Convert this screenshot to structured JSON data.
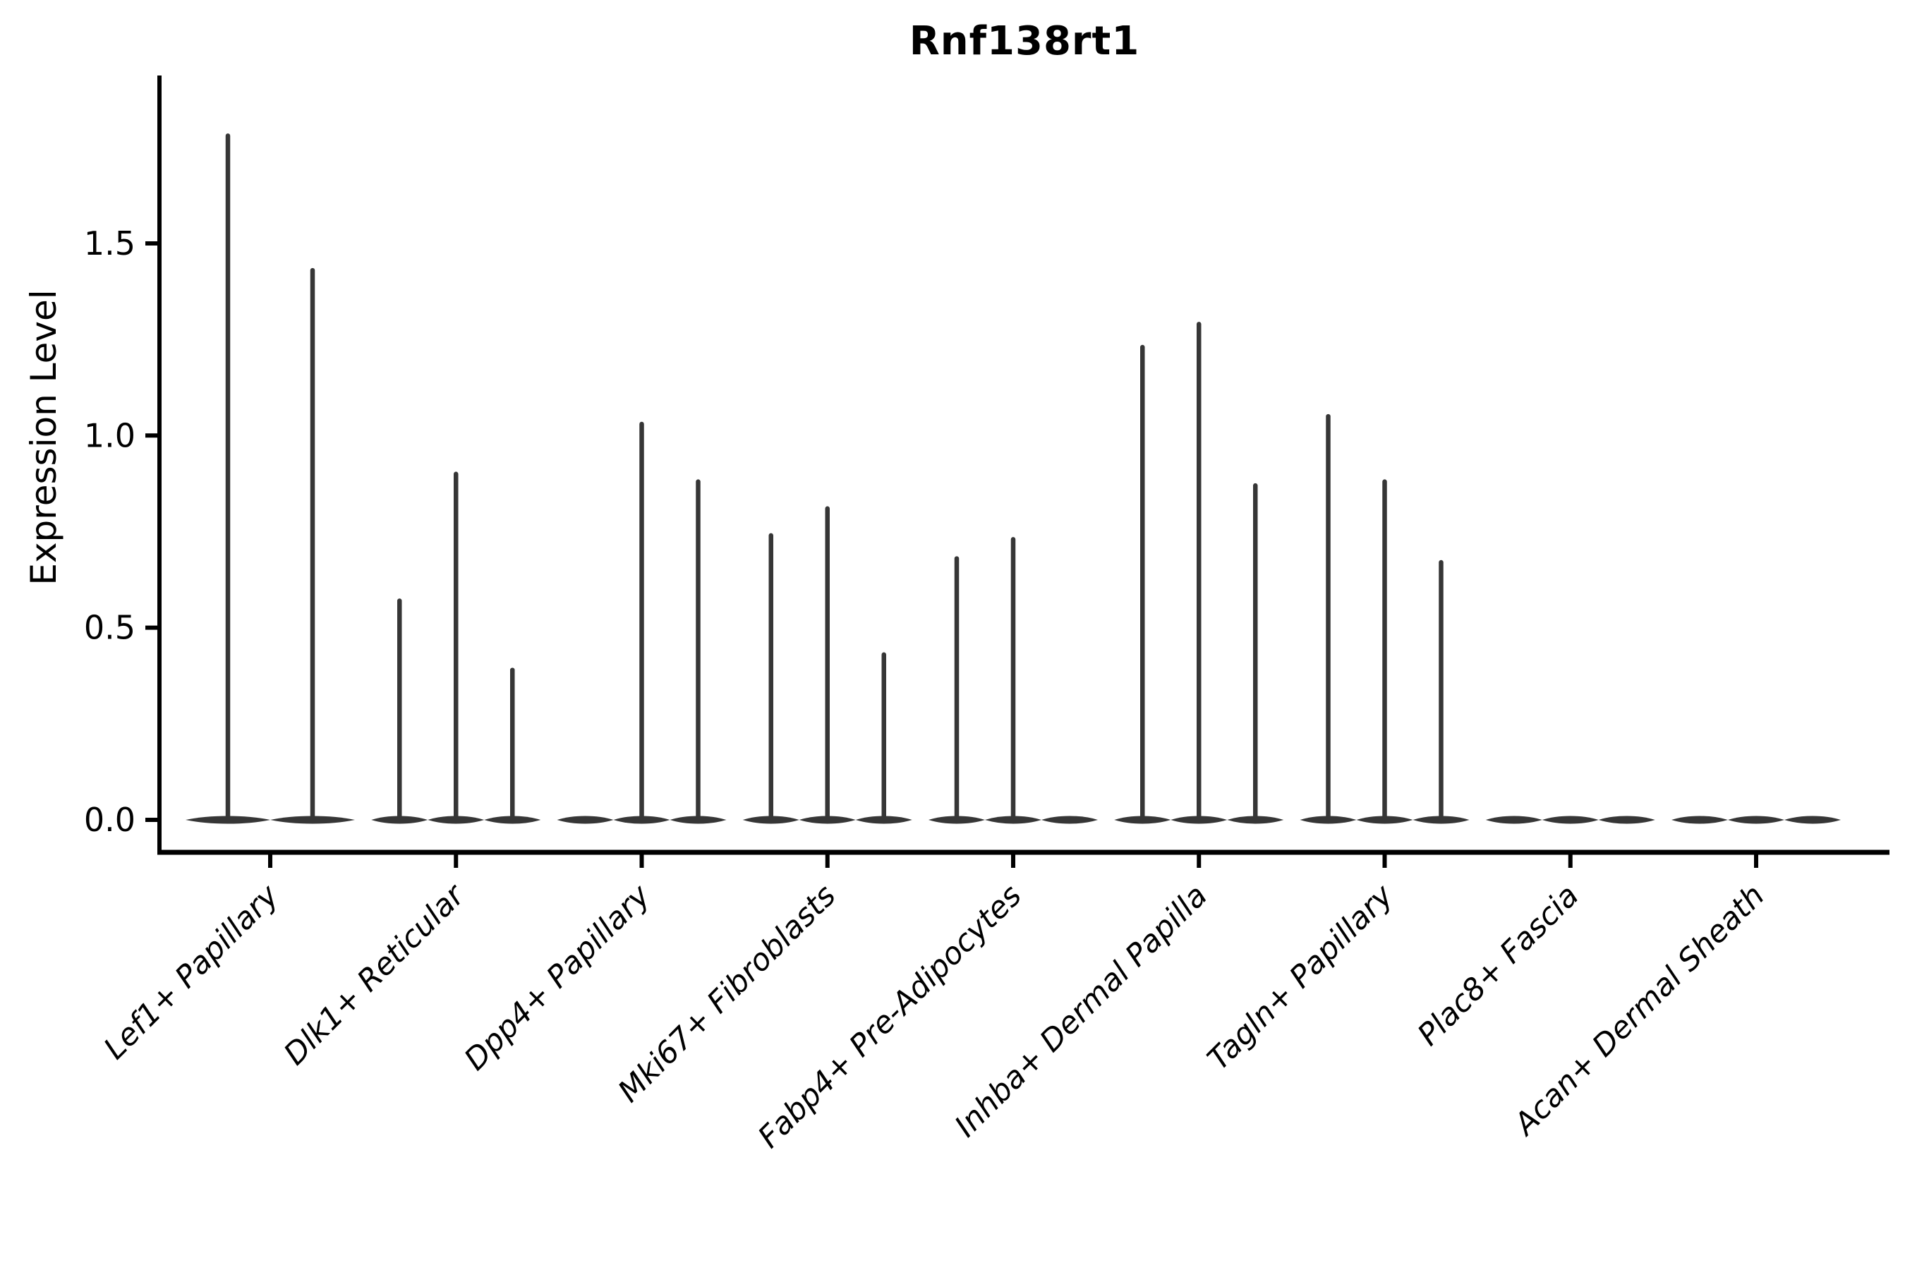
{
  "figure": {
    "background_color": "#ffffff"
  },
  "chart_data": {
    "type": "violin",
    "title": "Rnf138rt1",
    "xlabel": "",
    "ylabel": "Expression Level",
    "ytick_labels": [
      "0.0",
      "0.5",
      "1.0",
      "1.5"
    ],
    "yticks": [
      0.0,
      0.5,
      1.0,
      1.5
    ],
    "ylim": [
      -0.085,
      1.94
    ],
    "grid": false,
    "legend": "none",
    "x_tick_label_rotation_deg": 45,
    "x_tick_label_style": "italic",
    "categories": [
      "Lef1+ Papillary",
      "Dlk1+ Reticular",
      "Dpp4+ Papillary",
      "Mki67+ Fibroblasts",
      "Fabp4+ Pre-Adipocytes",
      "Inhba+ Dermal Papilla",
      "Tagln+ Papillary",
      "Plac8+ Fascia",
      "Acan+ Dermal Sheath"
    ],
    "groups": [
      {
        "label": "Lef1+ Papillary",
        "violin_peaks": [
          1.78,
          1.43
        ]
      },
      {
        "label": "Dlk1+ Reticular",
        "violin_peaks": [
          0.57,
          0.9,
          0.39
        ]
      },
      {
        "label": "Dpp4+ Papillary",
        "violin_peaks": [
          0.0,
          1.03,
          0.88
        ]
      },
      {
        "label": "Mki67+ Fibroblasts",
        "violin_peaks": [
          0.74,
          0.81,
          0.43
        ]
      },
      {
        "label": "Fabp4+ Pre-Adipocytes",
        "violin_peaks": [
          0.68,
          0.73,
          0.0
        ]
      },
      {
        "label": "Inhba+ Dermal Papilla",
        "violin_peaks": [
          1.23,
          1.29,
          0.87
        ]
      },
      {
        "label": "Tagln+ Papillary",
        "violin_peaks": [
          1.05,
          0.88,
          0.67
        ]
      },
      {
        "label": "Plac8+ Fascia",
        "violin_peaks": [
          0.0,
          0.0,
          0.0
        ]
      },
      {
        "label": "Acan+ Dermal Sheath",
        "violin_peaks": [
          0.0,
          0.0,
          0.0
        ]
      }
    ],
    "notes": "Peaks of 0 render as flat violins collapsed on the baseline (all-zero expression). Each violin is a thin vertical spike rising from a flat lens-shaped body at y=0.",
    "colors": {
      "violin_stroke": "#363636",
      "axis": "#000000",
      "text": "#000000",
      "background": "#ffffff"
    }
  }
}
